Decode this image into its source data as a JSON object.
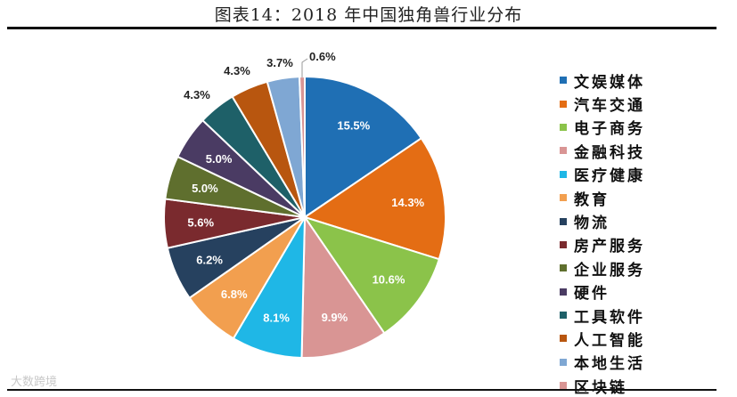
{
  "chart_data": {
    "type": "pie",
    "title": "图表14：2018 年中国独角兽行业分布",
    "categories": [
      "文娱媒体",
      "汽车交通",
      "电子商务",
      "金融科技",
      "医疗健康",
      "教育",
      "物流",
      "房产服务",
      "企业服务",
      "硬件",
      "工具软件",
      "人工智能",
      "本地生活",
      "区块链"
    ],
    "values": [
      15.5,
      14.3,
      10.6,
      9.9,
      8.1,
      6.8,
      6.2,
      5.6,
      5.0,
      5.0,
      4.3,
      4.3,
      3.7,
      0.6
    ],
    "labels": [
      "15.5%",
      "14.3%",
      "10.6%",
      "9.9%",
      "8.1%",
      "6.8%",
      "6.2%",
      "5.6%",
      "5.0%",
      "5.0%",
      "4.3%",
      "4.3%",
      "3.7%",
      "0.6%"
    ],
    "colors": [
      "#1f6fb4",
      "#e46d14",
      "#8bc34a",
      "#d99594",
      "#1fb7e6",
      "#f29f4f",
      "#26415f",
      "#7a2a2e",
      "#5f6f2e",
      "#4a3b63",
      "#1e6068",
      "#b8560f",
      "#7fa7d3",
      "#d99594"
    ],
    "legend_position": "right"
  },
  "watermark": "大数跨境"
}
